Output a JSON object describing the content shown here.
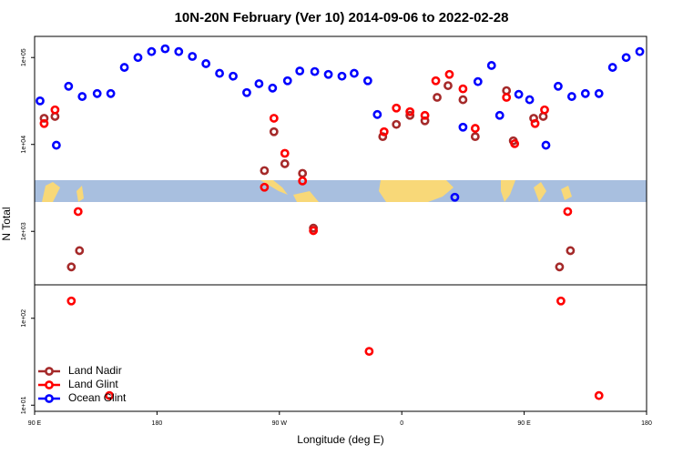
{
  "chart_data": {
    "type": "scatter",
    "title": "10N-20N February (Ver 10)   2014-09-06 to 2022-02-28",
    "x_label": "Longitude (deg E)",
    "y_label": "N Total",
    "log_y": true,
    "legend_position": "lower left",
    "xlim": [
      90,
      540
    ],
    "xticks": [
      {
        "value": 90,
        "label": "90 E"
      },
      180,
      {
        "value": 270,
        "label": "90 W"
      },
      {
        "value": 360,
        "label": "0"
      },
      {
        "value": 450,
        "label": "90 E"
      },
      {
        "value": 540,
        "label": "180"
      }
    ],
    "ylim": [
      8.5,
      175000
    ],
    "yticks": [
      {
        "value": 10,
        "label": "1e+01"
      },
      {
        "value": 100,
        "label": "1e+02"
      },
      {
        "value": 1000,
        "label": "1e+03"
      },
      {
        "value": 10000,
        "label": "1e+04"
      },
      {
        "value": 100000,
        "label": "1e+05"
      }
    ],
    "series": [
      {
        "name": "Land Nadir",
        "color": "#a52a2a",
        "x": [
          97,
          105,
          123,
          117,
          259,
          266,
          274,
          287,
          295,
          346,
          356,
          366,
          377,
          386,
          394,
          405,
          414,
          437,
          442,
          457,
          464,
          484,
          476
        ],
        "values": [
          20000,
          21000,
          600,
          390,
          5000,
          14000,
          6000,
          4650,
          1090,
          12300,
          17000,
          21600,
          18700,
          34800,
          47500,
          32700,
          12300,
          41600,
          11000,
          20000,
          21000,
          600,
          390
        ]
      },
      {
        "name": "Land Glint",
        "color": "#ff0000",
        "x": [
          97,
          105,
          122,
          117,
          145,
          259,
          266,
          274,
          287,
          295,
          336,
          347,
          356,
          366,
          377,
          385,
          395,
          405,
          414,
          437,
          443,
          458,
          465,
          482,
          477,
          505
        ],
        "values": [
          17400,
          25000,
          1690,
          158,
          12.9,
          3220,
          20000,
          7900,
          3800,
          1020,
          41.6,
          14000,
          26200,
          23800,
          21600,
          54000,
          64000,
          43600,
          15300,
          34800,
          10200,
          17400,
          25000,
          1690,
          158,
          12.9
        ]
      },
      {
        "name": "Ocean Glint",
        "color": "#0000ff",
        "x": [
          94,
          106,
          115,
          125,
          136,
          146,
          156,
          166,
          176,
          186,
          196,
          206,
          216,
          226,
          236,
          246,
          255,
          265,
          276,
          285,
          296,
          306,
          316,
          325,
          335,
          342,
          399,
          405,
          416,
          426,
          432,
          446,
          454,
          466,
          475,
          485,
          495,
          505,
          515,
          525,
          535
        ],
        "values": [
          31700,
          9800,
          46700,
          35600,
          38500,
          38500,
          77000,
          100000,
          117000,
          126000,
          117000,
          103000,
          85000,
          65800,
          61000,
          39500,
          50000,
          44500,
          54000,
          70000,
          69000,
          64000,
          61000,
          65800,
          54000,
          22100,
          2470,
          15800,
          52800,
          81000,
          21600,
          37700,
          32700,
          9800,
          46700,
          35600,
          38500,
          38500,
          77000,
          100000,
          117000
        ]
      }
    ]
  }
}
